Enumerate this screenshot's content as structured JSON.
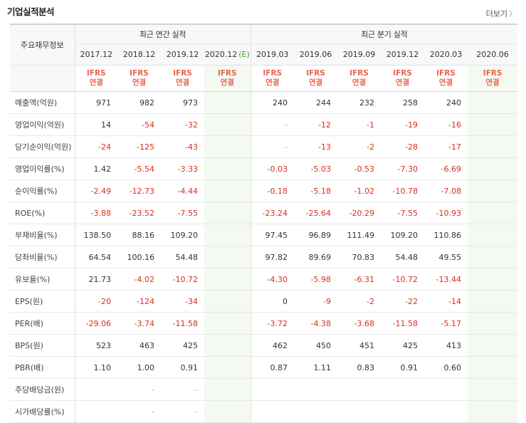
{
  "title": "기업실적분석",
  "more_label": "더보기",
  "header": {
    "label_col": "주요재무정보",
    "annual_group": "최근 연간 실적",
    "quarter_group": "최근 분기 실적",
    "periods": [
      "2017.12",
      "2018.12",
      "2019.12",
      "2020.12",
      "2019.03",
      "2019.06",
      "2019.09",
      "2019.12",
      "2020.03",
      "2020.06"
    ],
    "estimate_mark": "(E)",
    "ifrs_top": "IFRS",
    "ifrs_bottom": "연결"
  },
  "rows": [
    {
      "label": "매출액(억원)",
      "values": [
        "971",
        "982",
        "973",
        "",
        "240",
        "244",
        "232",
        "258",
        "240",
        ""
      ]
    },
    {
      "label": "영업이익(억원)",
      "values": [
        "14",
        "-54",
        "-32",
        "",
        "-",
        "-12",
        "-1",
        "-19",
        "-16",
        ""
      ]
    },
    {
      "label": "당기순이익(억원)",
      "values": [
        "-24",
        "-125",
        "-43",
        "",
        "-",
        "-13",
        "-2",
        "-28",
        "-17",
        ""
      ]
    },
    {
      "label": "영업이익률(%)",
      "values": [
        "1.42",
        "-5.54",
        "-3.33",
        "",
        "-0.03",
        "-5.03",
        "-0.53",
        "-7.30",
        "-6.69",
        ""
      ]
    },
    {
      "label": "순이익률(%)",
      "values": [
        "-2.49",
        "-12.73",
        "-4.44",
        "",
        "-0.18",
        "-5.18",
        "-1.02",
        "-10.78",
        "-7.08",
        ""
      ]
    },
    {
      "label": "ROE(%)",
      "values": [
        "-3.88",
        "-23.52",
        "-7.55",
        "",
        "-23.24",
        "-25.64",
        "-20.29",
        "-7.55",
        "-10.93",
        ""
      ]
    },
    {
      "label": "부채비율(%)",
      "values": [
        "138.50",
        "88.16",
        "109.20",
        "",
        "97.45",
        "96.89",
        "111.49",
        "109.20",
        "110.86",
        ""
      ]
    },
    {
      "label": "당좌비율(%)",
      "values": [
        "64.54",
        "100.16",
        "54.48",
        "",
        "97.82",
        "89.69",
        "70.83",
        "54.48",
        "49.55",
        ""
      ]
    },
    {
      "label": "유보율(%)",
      "values": [
        "21.73",
        "-4.02",
        "-10.72",
        "",
        "-4.30",
        "-5.98",
        "-6.31",
        "-10.72",
        "-13.44",
        ""
      ]
    },
    {
      "label": "EPS(원)",
      "values": [
        "-20",
        "-124",
        "-34",
        "",
        "0",
        "-9",
        "-2",
        "-22",
        "-14",
        ""
      ]
    },
    {
      "label": "PER(배)",
      "values": [
        "-29.06",
        "-3.74",
        "-11.58",
        "",
        "-3.72",
        "-4.38",
        "-3.68",
        "-11.58",
        "-5.17",
        ""
      ]
    },
    {
      "label": "BPS(원)",
      "values": [
        "523",
        "463",
        "425",
        "",
        "462",
        "450",
        "451",
        "425",
        "413",
        ""
      ]
    },
    {
      "label": "PBR(배)",
      "values": [
        "1.10",
        "1.00",
        "0.91",
        "",
        "0.87",
        "1.11",
        "0.83",
        "0.91",
        "0.60",
        ""
      ]
    },
    {
      "label": "주당배당금(원)",
      "values": [
        "",
        "-",
        "-",
        "",
        "",
        "",
        "",
        "",
        "",
        ""
      ]
    },
    {
      "label": "시가배당률(%)",
      "values": [
        "",
        "-",
        "-",
        "",
        "",
        "",
        "",
        "",
        "",
        ""
      ]
    }
  ],
  "colors": {
    "negative": "#d6301e",
    "ifrs": "#e8654d",
    "estimate_bg": "#f4f9f1"
  }
}
